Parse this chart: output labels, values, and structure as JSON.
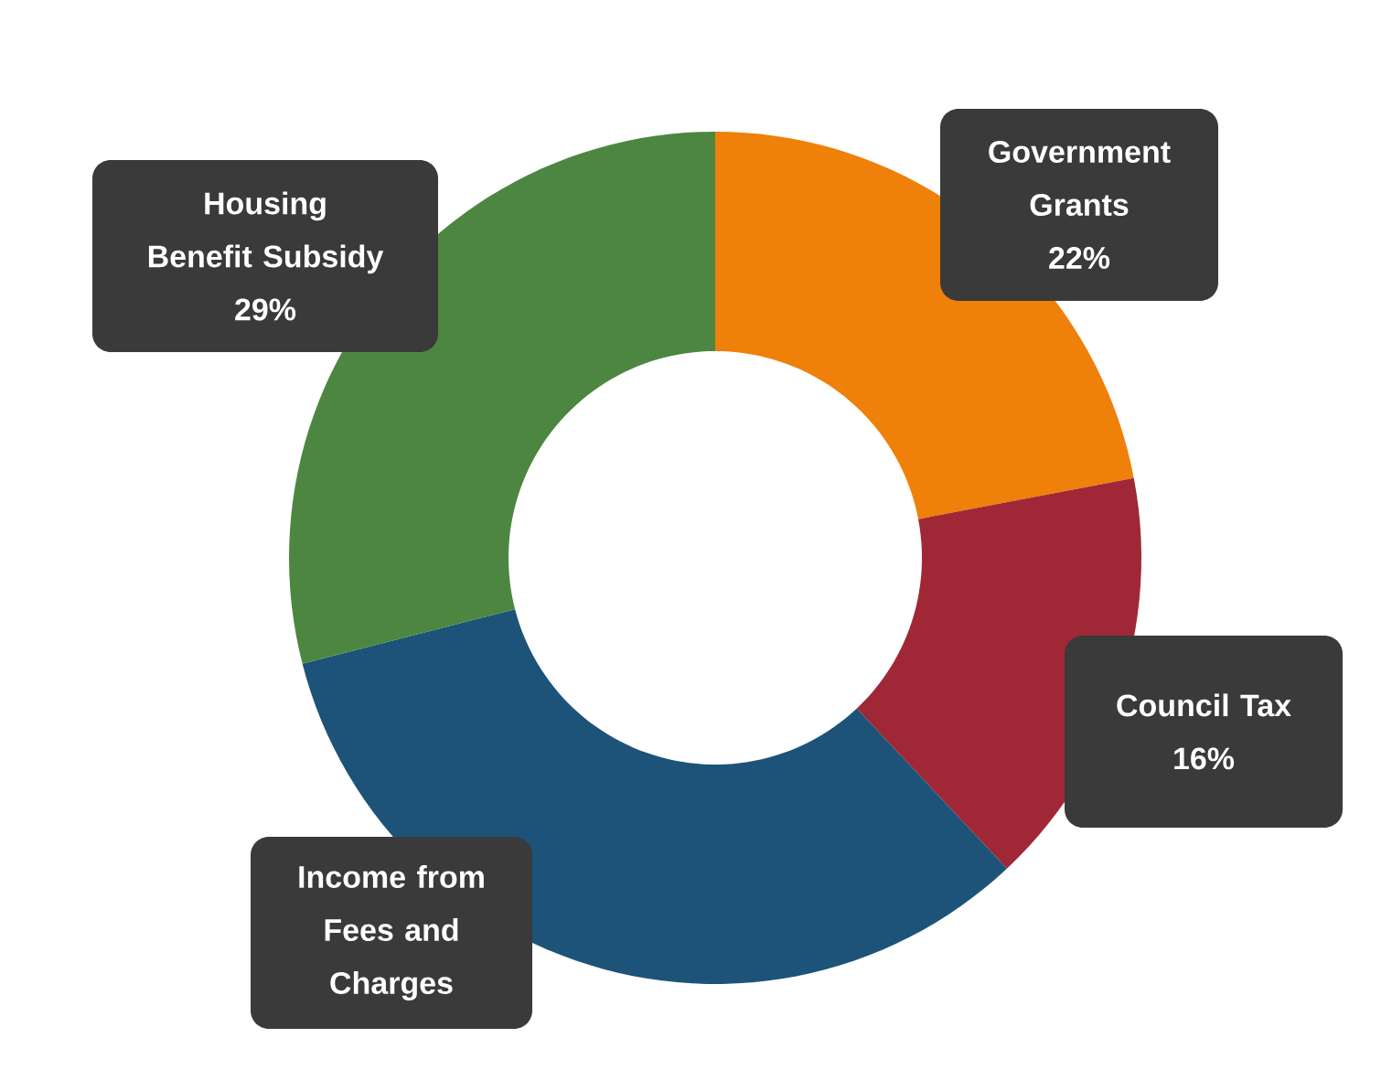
{
  "chart_data": {
    "type": "donut",
    "categories": [
      "Government Grants",
      "Council Tax",
      "Income from Fees and Charges",
      "Housing Benefit Subsidy"
    ],
    "values": [
      22,
      16,
      33,
      29
    ],
    "value_labels": [
      "22%",
      "16%",
      null,
      "29%"
    ],
    "colors": [
      "#ef8009",
      "#a02836",
      "#1d5378",
      "#4d8641"
    ]
  }
}
